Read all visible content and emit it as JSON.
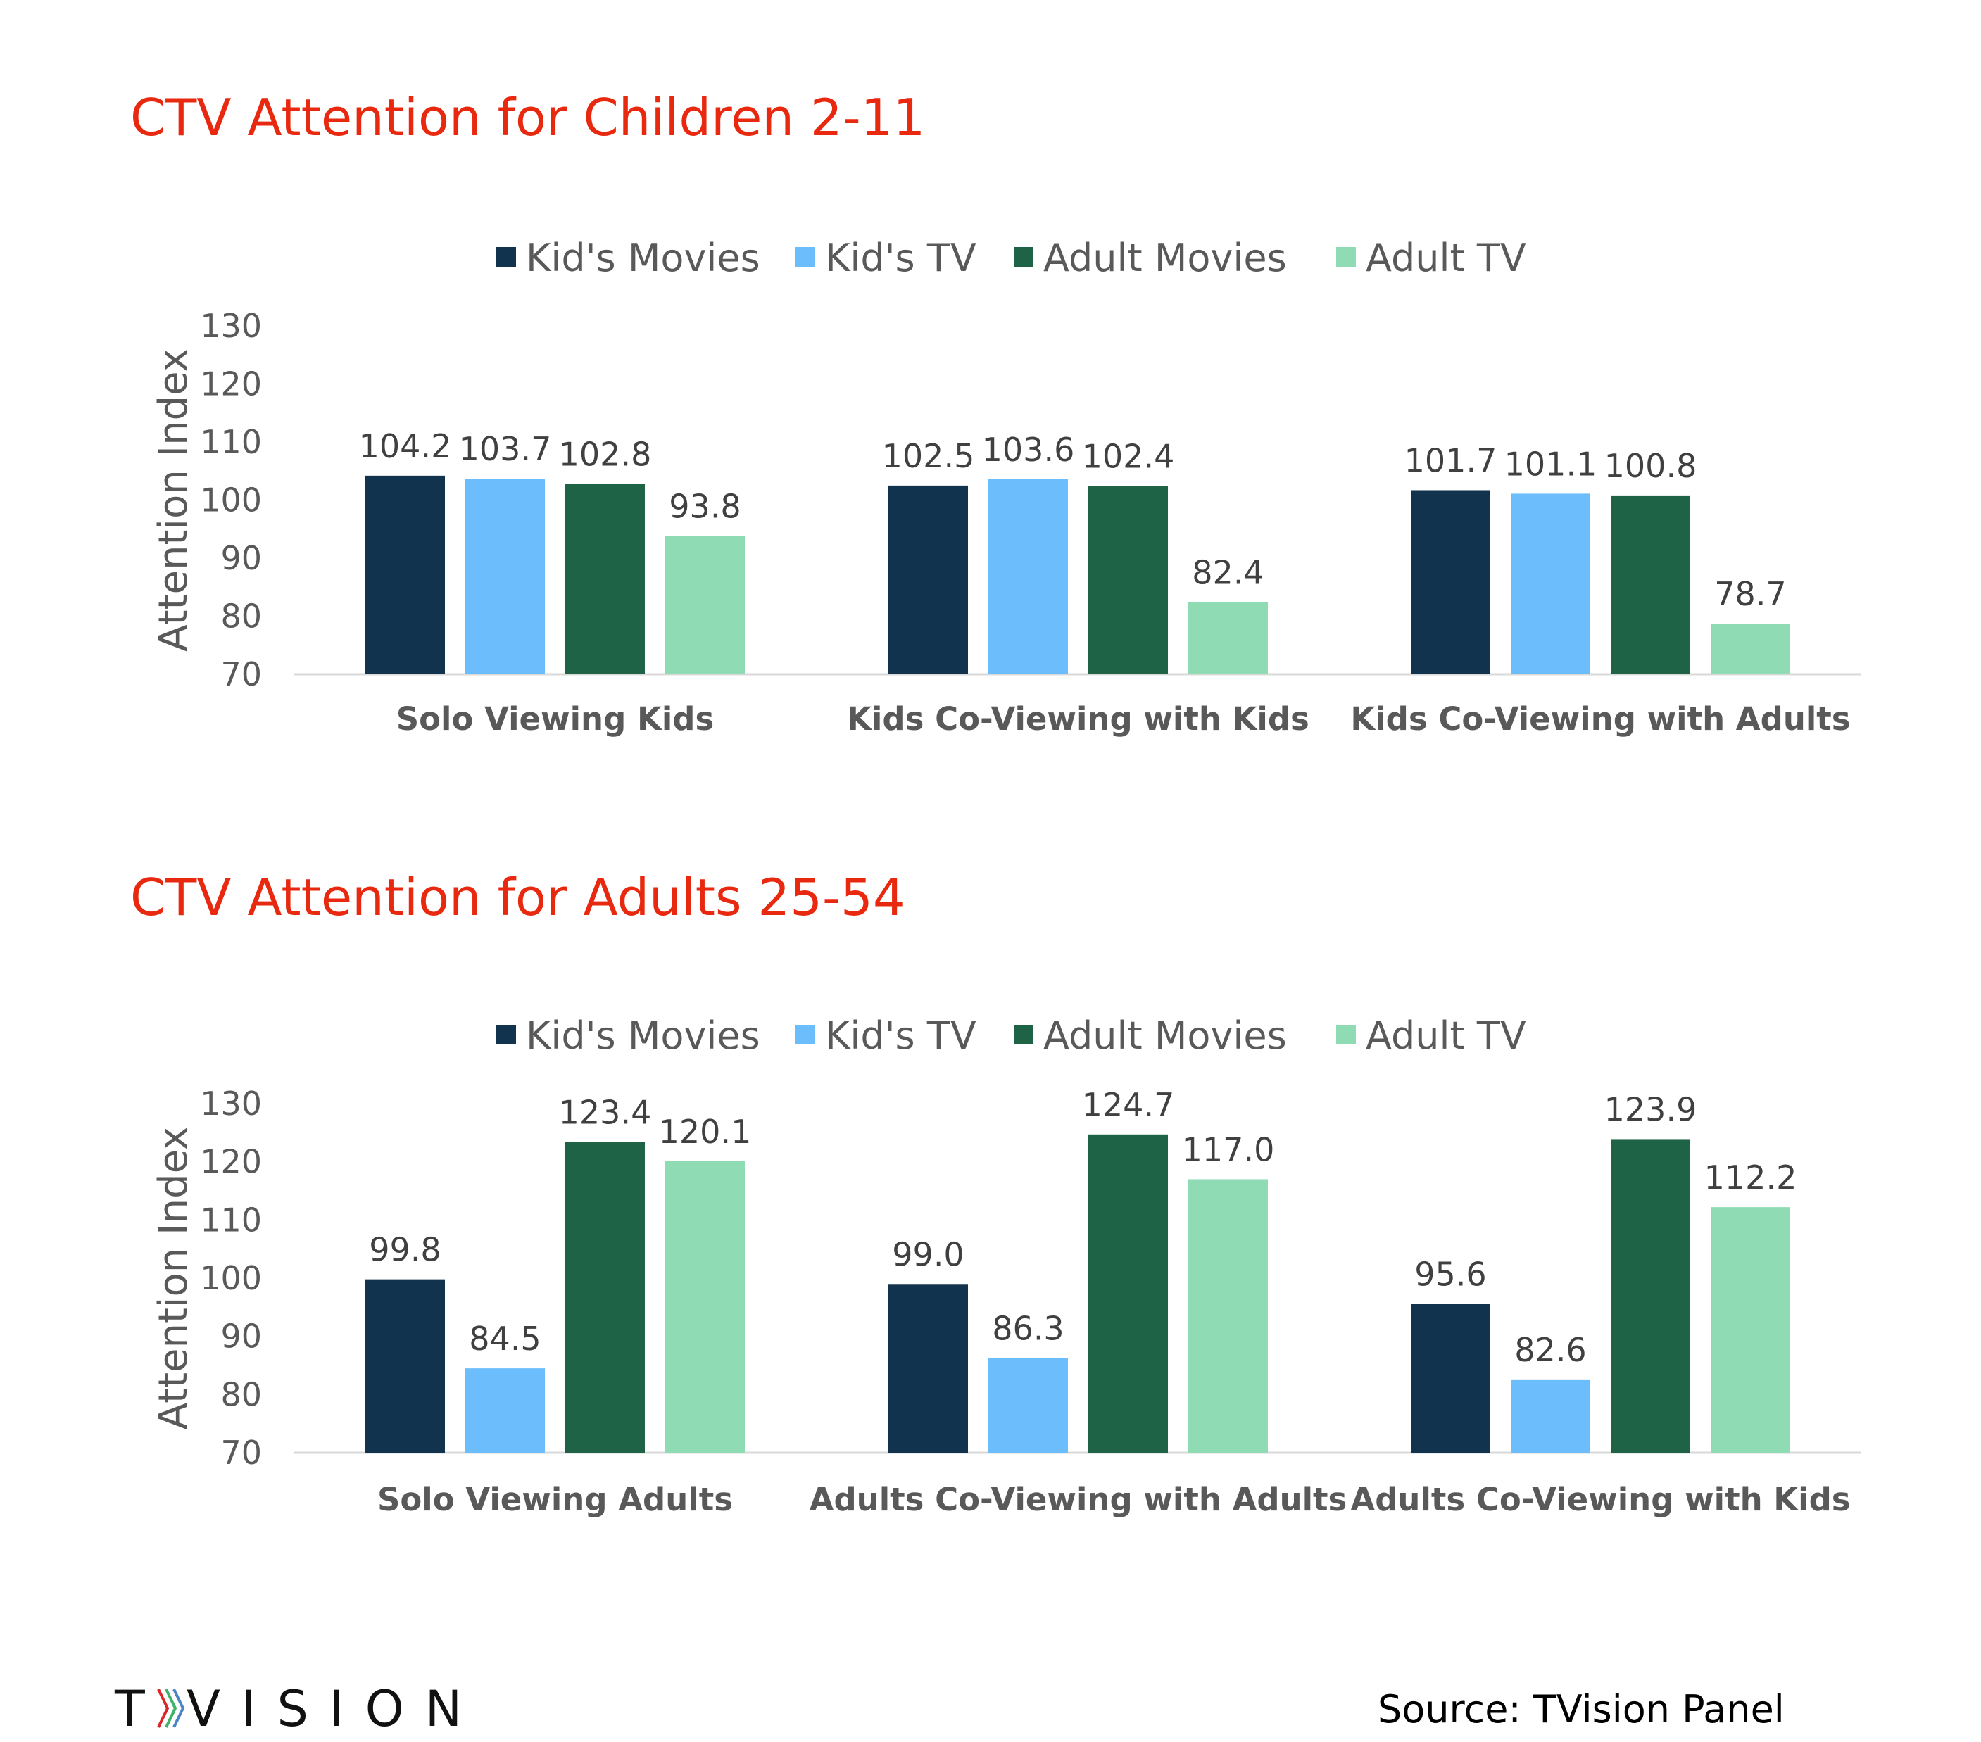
{
  "series_names": [
    "Kid's Movies",
    "Kid's TV",
    "Adult Movies",
    "Adult TV"
  ],
  "colors": {
    "Kid's Movies": "#12334d",
    "Kid's TV": "#6cbdfc",
    "Adult Movies": "#1f6346",
    "Adult TV": "#8edbb4",
    "title": "#e8290f",
    "logo_chevrons": [
      "#d8282a",
      "#3fb26b",
      "#4a86c5"
    ]
  },
  "chart_data": [
    {
      "type": "bar",
      "title": "CTV Attention for Children 2-11",
      "ylabel": "Attention Index",
      "ylim": [
        70,
        130
      ],
      "yticks": [
        "70",
        "80",
        "90",
        "100",
        "110",
        "120",
        "130"
      ],
      "legend": "top",
      "grid": false,
      "categories": [
        "Solo Viewing Kids",
        "Kids Co-Viewing with Kids",
        "Kids Co-Viewing with Adults"
      ],
      "series": [
        {
          "name": "Kid's Movies",
          "values": [
            104.2,
            102.5,
            101.7
          ],
          "labels": [
            "104.2",
            "102.5",
            "101.7"
          ]
        },
        {
          "name": "Kid's TV",
          "values": [
            103.7,
            103.6,
            101.1
          ],
          "labels": [
            "103.7",
            "103.6",
            "101.1"
          ]
        },
        {
          "name": "Adult Movies",
          "values": [
            102.8,
            102.4,
            100.8
          ],
          "labels": [
            "102.8",
            "102.4",
            "100.8"
          ]
        },
        {
          "name": "Adult TV",
          "values": [
            93.8,
            82.4,
            78.7
          ],
          "labels": [
            "93.8",
            "82.4",
            "78.7"
          ]
        }
      ]
    },
    {
      "type": "bar",
      "title": "CTV Attention for Adults 25-54",
      "ylabel": "Attention Index",
      "ylim": [
        70,
        130
      ],
      "yticks": [
        "70",
        "80",
        "90",
        "100",
        "110",
        "120",
        "130"
      ],
      "legend": "top",
      "grid": false,
      "categories": [
        "Solo Viewing Adults",
        "Adults Co-Viewing with Adults",
        "Adults Co-Viewing with Kids"
      ],
      "series": [
        {
          "name": "Kid's Movies",
          "values": [
            99.8,
            99.0,
            95.6
          ],
          "labels": [
            "99.8",
            "99.0",
            "95.6"
          ]
        },
        {
          "name": "Kid's TV",
          "values": [
            84.5,
            86.3,
            82.6
          ],
          "labels": [
            "84.5",
            "86.3",
            "82.6"
          ]
        },
        {
          "name": "Adult Movies",
          "values": [
            123.4,
            124.7,
            123.9
          ],
          "labels": [
            "123.4",
            "124.7",
            "123.9"
          ]
        },
        {
          "name": "Adult TV",
          "values": [
            120.1,
            117.0,
            112.2
          ],
          "labels": [
            "120.1",
            "117.0",
            "112.2"
          ]
        }
      ]
    }
  ],
  "footer": {
    "logo": "TVISION",
    "source": "Source: TVision Panel"
  }
}
